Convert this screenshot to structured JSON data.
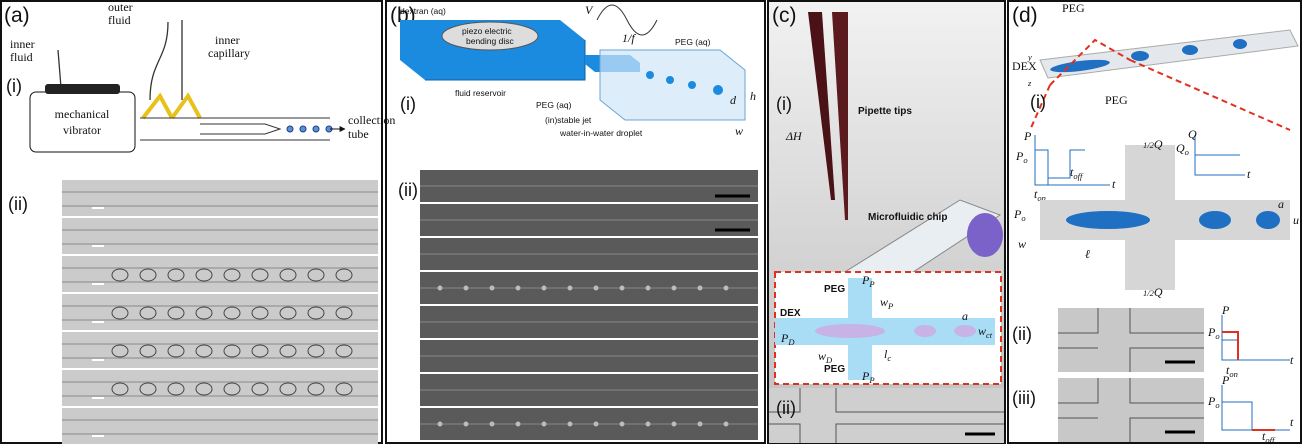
{
  "panel_a": {
    "label": "(a)",
    "sub_i": "(i)",
    "sub_ii": "(ii)",
    "inner_fluid": [
      "inner",
      "fluid"
    ],
    "outer_fluid": [
      "outer",
      "fluid"
    ],
    "inner_capillary": [
      "inner",
      "capillary"
    ],
    "vibrator": [
      "mechanical",
      "vibrator"
    ],
    "collection_tube": [
      "collection",
      "tube"
    ]
  },
  "panel_b": {
    "label": "(b)",
    "sub_i": "(i)",
    "sub_ii": "(ii)",
    "dextran": "dextran (aq)",
    "piezo": [
      "piezo electric",
      "bending disc"
    ],
    "voltage": "V",
    "period": "1/f",
    "reservoir": "fluid reservoir",
    "peg_top": "PEG (aq)",
    "peg_left": "PEG (aq)",
    "jet": "(in)stable jet",
    "droplet": "water-in-water droplet",
    "d": "d",
    "h": "h",
    "w": "w"
  },
  "panel_c": {
    "label": "(c)",
    "sub_i": "(i)",
    "sub_ii": "(ii)",
    "delta_h": "ΔH",
    "pipette": "Pipette tips",
    "chip": "Microfluidic chip",
    "peg_top": "PEG",
    "peg_bottom": "PEG",
    "dex": "DEX",
    "p_d": {
      "symbol": "P",
      "sub": "D"
    },
    "p_p_top": {
      "symbol": "P",
      "sub": "P"
    },
    "p_p_bottom": {
      "symbol": "P",
      "sub": "P"
    },
    "w_p": {
      "symbol": "w",
      "sub": "P"
    },
    "w_d": {
      "symbol": "w",
      "sub": "D"
    },
    "l_c": {
      "symbol": "l",
      "sub": "c"
    },
    "w_c": {
      "symbol": "w",
      "sub": "ct"
    },
    "a": "a"
  },
  "panel_d": {
    "label": "(d)",
    "sub_i": "(i)",
    "sub_ii": "(ii)",
    "sub_iii": "(iii)",
    "peg_top": "PEG",
    "peg_bottom": "PEG",
    "dex": "DEX",
    "axis_y": "y",
    "axis_z": "z",
    "p": "P",
    "p_o": {
      "symbol": "P",
      "sub": "o"
    },
    "t_on": {
      "symbol": "t",
      "sub": "on"
    },
    "t_off": {
      "symbol": "t",
      "sub": "off"
    },
    "t": "t",
    "q": "Q",
    "q_o": {
      "symbol": "Q",
      "sub": "o"
    },
    "q_t": "t",
    "half_q_top": {
      "frac": "1/2",
      "symbol": "Q"
    },
    "half_q_bottom": {
      "frac": "1/2",
      "symbol": "Q"
    },
    "p_o_in": {
      "symbol": "P",
      "sub": "o"
    },
    "w": "w",
    "ell": "ℓ",
    "a": "a",
    "u": "u",
    "plot_ii": {
      "p": "P",
      "p_o": {
        "symbol": "P",
        "sub": "o"
      },
      "t": "t",
      "t_on": {
        "symbol": "t",
        "sub": "on"
      }
    },
    "plot_iii": {
      "p": "P",
      "p_o": {
        "symbol": "P",
        "sub": "o"
      },
      "t": "t",
      "t_off": {
        "symbol": "t",
        "sub": "off"
      }
    }
  }
}
